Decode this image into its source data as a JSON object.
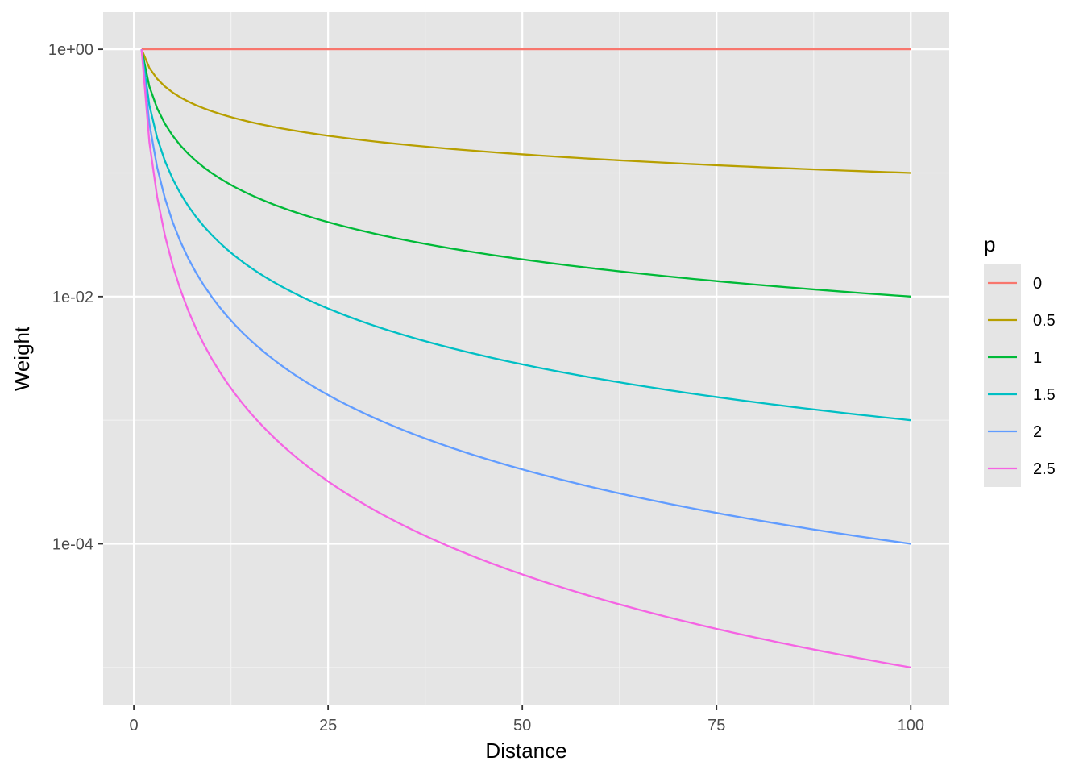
{
  "chart_data": {
    "type": "line",
    "title": "",
    "xlabel": "Distance",
    "ylabel": "Weight",
    "x_scale": "linear",
    "y_scale": "log10",
    "xlim": [
      -3.95,
      104.95
    ],
    "ylim": [
      5e-06,
      2
    ],
    "x_ticks": [
      0,
      25,
      50,
      75,
      100
    ],
    "x_tick_labels": [
      "0",
      "25",
      "50",
      "75",
      "100"
    ],
    "y_ticks": [
      1,
      0.01,
      0.0001
    ],
    "y_tick_labels": [
      "1e+00",
      "1e-02",
      "1e-04"
    ],
    "grid": true,
    "background": "#e5e5e5",
    "legend": {
      "title": "p",
      "position": "right"
    },
    "function": "weight = distance^(-p)",
    "x_range": [
      1,
      100
    ],
    "series": [
      {
        "name": "0",
        "p": 0,
        "color": "#f8766d"
      },
      {
        "name": "0.5",
        "p": 0.5,
        "color": "#b79f00"
      },
      {
        "name": "1",
        "p": 1,
        "color": "#00ba38"
      },
      {
        "name": "1.5",
        "p": 1.5,
        "color": "#00bfc4"
      },
      {
        "name": "2",
        "p": 2,
        "color": "#619cff"
      },
      {
        "name": "2.5",
        "p": 2.5,
        "color": "#f564e3"
      }
    ]
  }
}
